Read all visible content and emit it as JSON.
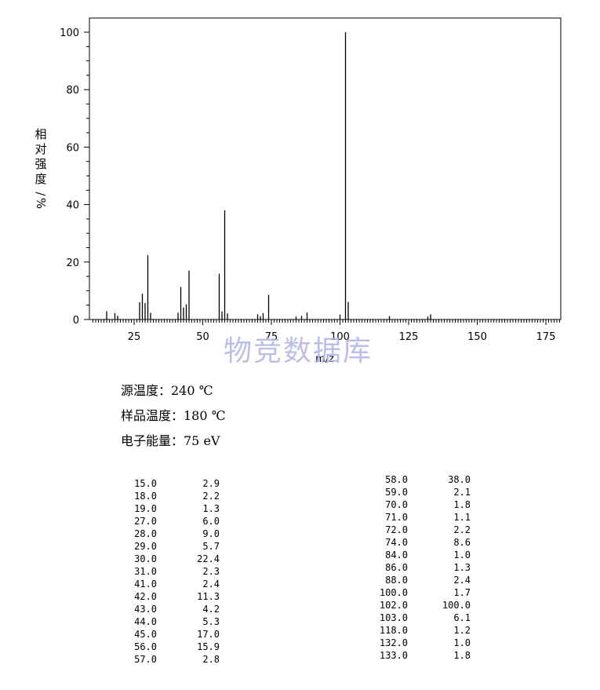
{
  "chart_data": {
    "type": "bar",
    "xlabel": "m/z",
    "ylabel": "相对强度/%",
    "xlim": [
      10,
      180
    ],
    "ylim": [
      0,
      105
    ],
    "xticks": [
      25,
      50,
      75,
      100,
      125,
      150,
      175
    ],
    "yticks": [
      0,
      20,
      40,
      60,
      80,
      100
    ],
    "grid": false,
    "series": [
      {
        "x": [
          15,
          18,
          19,
          27,
          28,
          29,
          30,
          31,
          41,
          42,
          43,
          44,
          45,
          56,
          57,
          58,
          59,
          70,
          71,
          72,
          74,
          84,
          86,
          88,
          100,
          102,
          103,
          118,
          132,
          133
        ],
        "values": [
          2.9,
          2.2,
          1.3,
          6.0,
          9.0,
          5.7,
          22.4,
          2.3,
          2.4,
          11.3,
          4.2,
          5.3,
          17.0,
          15.9,
          2.8,
          38.0,
          2.1,
          1.8,
          1.1,
          2.2,
          8.6,
          1.0,
          1.3,
          2.4,
          1.7,
          100.0,
          6.1,
          1.2,
          1.0,
          1.8
        ]
      }
    ]
  },
  "watermark": "物竞数据库",
  "conditions": [
    "源温度：240 ℃",
    "样品温度：180 ℃",
    "电子能量：75 eV"
  ],
  "peak_table_left": [
    {
      "mz": "15.0",
      "abundance": "2.9"
    },
    {
      "mz": "18.0",
      "abundance": "2.2"
    },
    {
      "mz": "19.0",
      "abundance": "1.3"
    },
    {
      "mz": "27.0",
      "abundance": "6.0"
    },
    {
      "mz": "28.0",
      "abundance": "9.0"
    },
    {
      "mz": "29.0",
      "abundance": "5.7"
    },
    {
      "mz": "30.0",
      "abundance": "22.4"
    },
    {
      "mz": "31.0",
      "abundance": "2.3"
    },
    {
      "mz": "41.0",
      "abundance": "2.4"
    },
    {
      "mz": "42.0",
      "abundance": "11.3"
    },
    {
      "mz": "43.0",
      "abundance": "4.2"
    },
    {
      "mz": "44.0",
      "abundance": "5.3"
    },
    {
      "mz": "45.0",
      "abundance": "17.0"
    },
    {
      "mz": "56.0",
      "abundance": "15.9"
    },
    {
      "mz": "57.0",
      "abundance": "2.8"
    }
  ],
  "peak_table_right": [
    {
      "mz": "58.0",
      "abundance": "38.0"
    },
    {
      "mz": "59.0",
      "abundance": "2.1"
    },
    {
      "mz": "70.0",
      "abundance": "1.8"
    },
    {
      "mz": "71.0",
      "abundance": "1.1"
    },
    {
      "mz": "72.0",
      "abundance": "2.2"
    },
    {
      "mz": "74.0",
      "abundance": "8.6"
    },
    {
      "mz": "84.0",
      "abundance": "1.0"
    },
    {
      "mz": "86.0",
      "abundance": "1.3"
    },
    {
      "mz": "88.0",
      "abundance": "2.4"
    },
    {
      "mz": "100.0",
      "abundance": "1.7"
    },
    {
      "mz": "102.0",
      "abundance": "100.0"
    },
    {
      "mz": "103.0",
      "abundance": "6.1"
    },
    {
      "mz": "118.0",
      "abundance": "1.2"
    },
    {
      "mz": "132.0",
      "abundance": "1.0"
    },
    {
      "mz": "133.0",
      "abundance": "1.8"
    }
  ]
}
